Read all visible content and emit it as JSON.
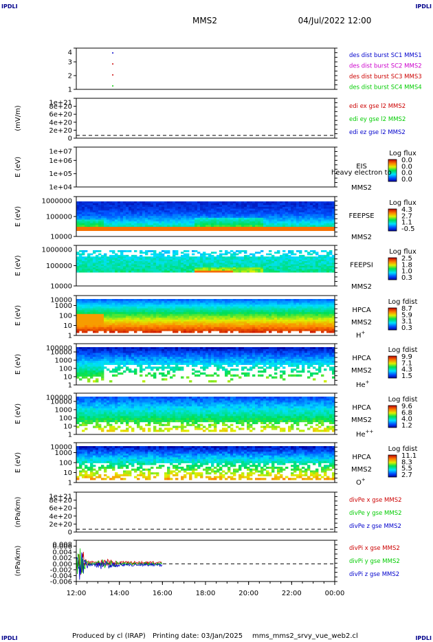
{
  "header": {
    "corner_left": "IPDLI",
    "corner_right": "IPDLI",
    "spacecraft": "MMS2",
    "datetime": "04/Jul/2022 12:00"
  },
  "footer": {
    "produced_by": "Produced by cl (IRAP)",
    "printing_date": "Printing date: 03/Jan/2025",
    "file_name": "mms_mms2_srvy_vue_web2.cl",
    "corner_left": "IPDLI",
    "corner_right": "IPDLI"
  },
  "time_axis": [
    "12:00",
    "14:00",
    "16:00",
    "18:00",
    "20:00",
    "22:00",
    "00:00"
  ],
  "chart_data": [
    {
      "type": "scatter",
      "panel": "burst",
      "yticks": [
        "4",
        "3",
        "2",
        "1"
      ],
      "ylim": [
        0.5,
        4.5
      ],
      "legend": [
        {
          "text": "des dist burst SC1 MMS1",
          "color": "#0000cc"
        },
        {
          "text": "des dist burst SC2 MMS2",
          "color": "#cc00cc"
        },
        {
          "text": "des dist burst SC3 MMS3",
          "color": "#cc0000"
        },
        {
          "text": "des dist burst SC4 MMS4",
          "color": "#00cc00"
        }
      ]
    },
    {
      "type": "line",
      "panel": "edi",
      "ylabel": "(mV/m)",
      "yticks": [
        "1e+21",
        "8e+20",
        "6e+20",
        "4e+20",
        "2e+20",
        "0"
      ],
      "legend": [
        {
          "text": "edi ex gse l2 MMS2",
          "color": "#cc0000"
        },
        {
          "text": "edi ey gse l2 MMS2",
          "color": "#00cc00"
        },
        {
          "text": "edi ez gse l2 MMS2",
          "color": "#0000cc"
        }
      ]
    },
    {
      "type": "heatmap",
      "panel": "eis",
      "ylabel": "E (eV)",
      "yticks": [
        "1e+07",
        "1e+06",
        "1e+05",
        "1e+04"
      ],
      "instrument": "EIS",
      "spacecraft": "MMS2",
      "overlay_text": "heavy electron to",
      "cbar_title": "Log flux",
      "cbar_ticks": [
        "0.0",
        "0.0",
        "0.0",
        "0.0"
      ]
    },
    {
      "type": "heatmap",
      "panel": "feepse",
      "ylabel": "E (eV)",
      "yticks": [
        "1000000",
        "100000",
        "10000"
      ],
      "instrument": "FEEPSE",
      "spacecraft": "MMS2",
      "cbar_title": "Log flux",
      "cbar_ticks": [
        "4.3",
        "2.7",
        "1.1",
        "-0.5"
      ]
    },
    {
      "type": "heatmap",
      "panel": "feepsi",
      "ylabel": "E (eV)",
      "yticks": [
        "1000000",
        "100000",
        "10000"
      ],
      "instrument": "FEEPSI",
      "spacecraft": "MMS2",
      "cbar_title": "Log flux",
      "cbar_ticks": [
        "2.5",
        "1.8",
        "1.0",
        "0.3"
      ]
    },
    {
      "type": "heatmap",
      "panel": "hpca_h",
      "ylabel": "E (eV)",
      "yticks": [
        "10000",
        "1000",
        "100",
        "10",
        "1"
      ],
      "instrument": "HPCA",
      "spacecraft": "MMS2",
      "species": "H",
      "species_sup": "+",
      "cbar_title": "Log fdist",
      "cbar_ticks": [
        "8.7",
        "5.9",
        "3.1",
        "0.3"
      ]
    },
    {
      "type": "heatmap",
      "panel": "hpca_he",
      "ylabel": "E (eV)",
      "yticks": [
        "100000",
        "10000",
        "1000",
        "100",
        "10",
        "1"
      ],
      "instrument": "HPCA",
      "spacecraft": "MMS2",
      "species": "He",
      "species_sup": "+",
      "cbar_title": "Log fdist",
      "cbar_ticks": [
        "9.9",
        "7.1",
        "4.3",
        "1.5"
      ]
    },
    {
      "type": "heatmap",
      "panel": "hpca_hepp",
      "ylabel": "E (eV)",
      "yticks": [
        "100000",
        "10000",
        "1000",
        "100",
        "10",
        "1"
      ],
      "instrument": "HPCA",
      "spacecraft": "MMS2",
      "species": "He",
      "species_sup": "++",
      "cbar_title": "Log fdist",
      "cbar_ticks": [
        "9.6",
        "6.8",
        "4.0",
        "1.2"
      ]
    },
    {
      "type": "heatmap",
      "panel": "hpca_o",
      "ylabel": "E (eV)",
      "yticks": [
        "10000",
        "1000",
        "100",
        "10",
        "1"
      ],
      "instrument": "HPCA",
      "spacecraft": "MMS2",
      "species": "O",
      "species_sup": "+",
      "cbar_title": "Log fdist",
      "cbar_ticks": [
        "11.1",
        "8.3",
        "5.5",
        "2.7"
      ]
    },
    {
      "type": "line",
      "panel": "divpe",
      "ylabel": "(nPa/km)",
      "yticks": [
        "1e+21",
        "8e+20",
        "6e+20",
        "4e+20",
        "2e+20",
        "0"
      ],
      "legend": [
        {
          "text": "divPe x gse MMS2",
          "color": "#cc0000"
        },
        {
          "text": "divPe y gse MMS2",
          "color": "#00cc00"
        },
        {
          "text": "divPe z gse MMS2",
          "color": "#0000cc"
        }
      ]
    },
    {
      "type": "line",
      "panel": "divpi",
      "ylabel": "(nPa/km)",
      "yticks": [
        "0.008",
        "0.006",
        "0.004",
        "0.002",
        "0.000",
        "-0.002",
        "-0.004",
        "-0.006"
      ],
      "ylim": [
        -0.007,
        0.009
      ],
      "legend": [
        {
          "text": "divPi x gse MMS2",
          "color": "#cc0000"
        },
        {
          "text": "divPi y gse MMS2",
          "color": "#00cc00"
        },
        {
          "text": "divPi z gse MMS2",
          "color": "#0000cc"
        }
      ]
    }
  ]
}
